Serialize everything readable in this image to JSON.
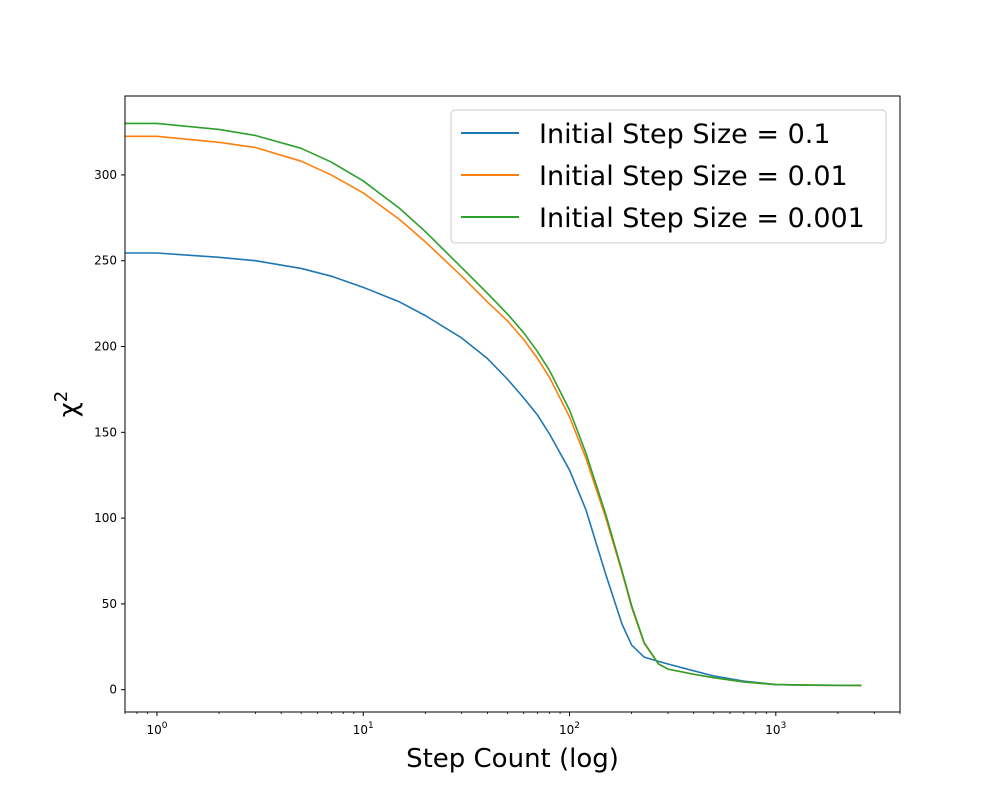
{
  "chart_data": {
    "type": "line",
    "title": "",
    "xlabel": "Step Count (log)",
    "ylabel": "χ",
    "ylabel_superscript": "2",
    "xscale": "log",
    "xlim": [
      0.7,
      4000
    ],
    "ylim": [
      -13,
      346
    ],
    "grid": false,
    "legend_position": "top-right",
    "x_ticks": [
      {
        "value": 1,
        "base": "10",
        "exp": "0"
      },
      {
        "value": 10,
        "base": "10",
        "exp": "1"
      },
      {
        "value": 100,
        "base": "10",
        "exp": "2"
      },
      {
        "value": 1000,
        "base": "10",
        "exp": "3"
      }
    ],
    "y_ticks": [
      0,
      50,
      100,
      150,
      200,
      250,
      300
    ],
    "series": [
      {
        "name": "Initial Step Size = 0.1",
        "color": "#1f77b4",
        "points": [
          [
            0.7,
            254.5
          ],
          [
            1,
            254.5
          ],
          [
            2,
            252
          ],
          [
            3,
            250
          ],
          [
            5,
            245.5
          ],
          [
            7,
            241
          ],
          [
            10,
            234.5
          ],
          [
            15,
            226
          ],
          [
            20,
            218
          ],
          [
            30,
            205
          ],
          [
            40,
            193
          ],
          [
            50,
            181
          ],
          [
            60,
            170
          ],
          [
            70,
            160
          ],
          [
            80,
            149
          ],
          [
            100,
            128
          ],
          [
            120,
            105
          ],
          [
            150,
            67
          ],
          [
            180,
            38
          ],
          [
            200,
            26
          ],
          [
            230,
            19
          ],
          [
            270,
            16.5
          ],
          [
            300,
            15
          ],
          [
            400,
            11
          ],
          [
            500,
            8
          ],
          [
            700,
            5
          ],
          [
            1000,
            3
          ],
          [
            1500,
            2.6
          ],
          [
            2600,
            2.5
          ]
        ]
      },
      {
        "name": "Initial Step Size = 0.01",
        "color": "#ff7f0e",
        "points": [
          [
            0.7,
            322.5
          ],
          [
            1,
            322.5
          ],
          [
            2,
            319
          ],
          [
            3,
            316
          ],
          [
            5,
            308
          ],
          [
            7,
            300
          ],
          [
            10,
            289.5
          ],
          [
            15,
            274
          ],
          [
            20,
            261
          ],
          [
            30,
            241
          ],
          [
            40,
            226
          ],
          [
            50,
            215
          ],
          [
            60,
            204
          ],
          [
            70,
            193
          ],
          [
            80,
            182
          ],
          [
            100,
            159
          ],
          [
            120,
            135
          ],
          [
            150,
            100
          ],
          [
            180,
            68
          ],
          [
            200,
            48
          ],
          [
            230,
            27
          ],
          [
            270,
            15
          ],
          [
            300,
            12
          ],
          [
            400,
            9
          ],
          [
            500,
            7
          ],
          [
            700,
            4.5
          ],
          [
            1000,
            3
          ],
          [
            1500,
            2.6
          ],
          [
            2600,
            2.5
          ]
        ]
      },
      {
        "name": "Initial Step Size = 0.001",
        "color": "#2ca02c",
        "points": [
          [
            0.7,
            330
          ],
          [
            1,
            330
          ],
          [
            2,
            326.5
          ],
          [
            3,
            323
          ],
          [
            5,
            315.5
          ],
          [
            7,
            307.5
          ],
          [
            10,
            296.5
          ],
          [
            15,
            280.5
          ],
          [
            20,
            267
          ],
          [
            30,
            246
          ],
          [
            40,
            231
          ],
          [
            50,
            219
          ],
          [
            60,
            208
          ],
          [
            70,
            197
          ],
          [
            80,
            186
          ],
          [
            100,
            163
          ],
          [
            120,
            138
          ],
          [
            150,
            102
          ],
          [
            180,
            69
          ],
          [
            200,
            49
          ],
          [
            230,
            27.5
          ],
          [
            270,
            15
          ],
          [
            300,
            12
          ],
          [
            400,
            9
          ],
          [
            500,
            7
          ],
          [
            700,
            4.5
          ],
          [
            1000,
            3
          ],
          [
            1500,
            2.6
          ],
          [
            2600,
            2.5
          ]
        ]
      }
    ]
  }
}
